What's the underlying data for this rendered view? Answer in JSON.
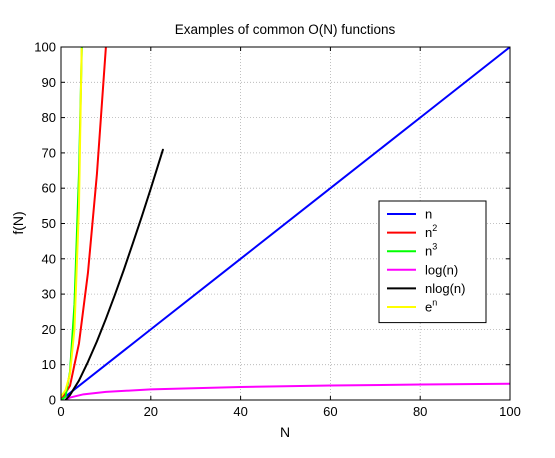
{
  "chart_data": {
    "type": "line",
    "title": "Examples of common O(N) functions",
    "xlabel": "N",
    "ylabel": "f(N)",
    "xlim": [
      0,
      100
    ],
    "ylim": [
      0,
      100
    ],
    "xticks": [
      "0",
      "20",
      "40",
      "60",
      "80",
      "100"
    ],
    "yticks": [
      "0",
      "10",
      "20",
      "30",
      "40",
      "50",
      "60",
      "70",
      "80",
      "90",
      "100"
    ],
    "grid": true,
    "legend_position": "right-middle",
    "series": [
      {
        "name": "n",
        "base": "n",
        "sup": "",
        "color": "#0000ff",
        "x": [
          0,
          20,
          40,
          60,
          80,
          100
        ],
        "y": [
          0,
          20,
          40,
          60,
          80,
          100
        ]
      },
      {
        "name": "n2",
        "base": "n",
        "sup": "2",
        "color": "#ff0000",
        "x": [
          0,
          2,
          4,
          6,
          8,
          10
        ],
        "y": [
          0,
          4,
          16,
          36,
          64,
          100
        ]
      },
      {
        "name": "n3",
        "base": "n",
        "sup": "3",
        "color": "#00ff00",
        "x": [
          0,
          1,
          2,
          3,
          4,
          4.64
        ],
        "y": [
          0,
          1,
          8,
          27,
          64,
          100
        ]
      },
      {
        "name": "log(n)",
        "base": "log(n)",
        "sup": "",
        "color": "#ff00ff",
        "x": [
          1,
          2,
          5,
          10,
          20,
          40,
          60,
          80,
          100
        ],
        "y": [
          0,
          0.69,
          1.61,
          2.3,
          3.0,
          3.69,
          4.09,
          4.38,
          4.6
        ]
      },
      {
        "name": "nlog(n)",
        "base": "nlog(n)",
        "sup": "",
        "color": "#000000",
        "x": [
          1,
          2,
          4,
          6,
          8,
          10,
          12,
          14,
          16,
          18,
          20,
          22.7
        ],
        "y": [
          0,
          1.4,
          5.5,
          10.8,
          16.6,
          23,
          29.8,
          36.9,
          44.4,
          52,
          59.9,
          70.9
        ]
      },
      {
        "name": "en",
        "base": "e",
        "sup": "n",
        "color": "#ffff00",
        "x": [
          0,
          1,
          2,
          3,
          4,
          4.6
        ],
        "y": [
          1,
          2.72,
          7.39,
          20.1,
          54.6,
          99.5
        ]
      }
    ]
  }
}
